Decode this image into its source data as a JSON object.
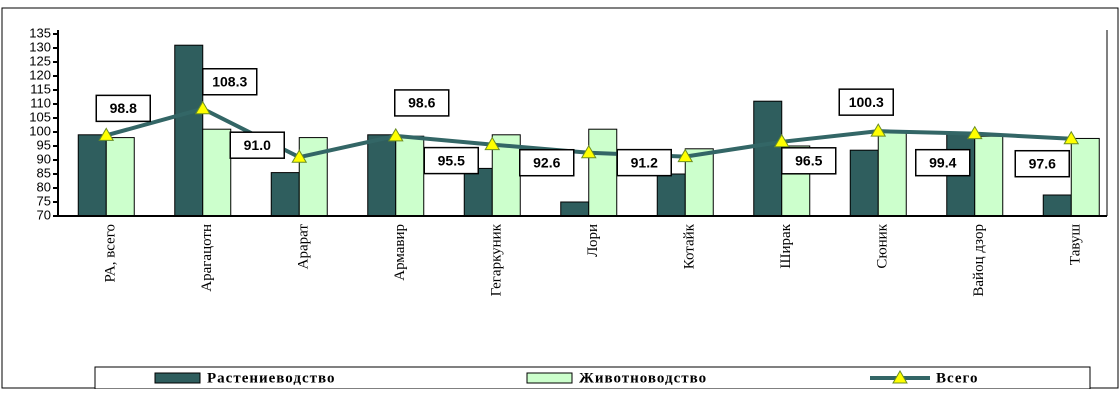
{
  "chart_data": {
    "type": "bar-line",
    "categories": [
      "РА, всего",
      "Арагацотн",
      "Арарат",
      "Армавир",
      "Гегаркуник",
      "Лори",
      "Котайк",
      "Ширак",
      "Сюник",
      "Вайоц дзор",
      "Тавуш"
    ],
    "series": [
      {
        "name": "Растениеводство",
        "type": "bar",
        "color": "#2f5e5e",
        "values": [
          99,
          131,
          85.5,
          99,
          87,
          75,
          85,
          111,
          93.5,
          99.5,
          77.5
        ]
      },
      {
        "name": "Животноводство",
        "type": "bar",
        "color": "#ccffcc",
        "values": [
          98,
          101,
          98,
          98.5,
          99,
          101,
          94,
          95,
          100,
          98.5,
          97.7
        ]
      },
      {
        "name": "Всего",
        "type": "line",
        "color": "#336666",
        "marker_color": "#ffff00",
        "values": [
          98.8,
          108.3,
          91.0,
          98.6,
          95.5,
          92.6,
          91.2,
          96.5,
          100.3,
          99.4,
          97.6
        ],
        "value_labels": [
          "98.8",
          "108.3",
          "91.0",
          "98.6",
          "95.5",
          "92.6",
          "91.2",
          "96.5",
          "100.3",
          "99.4",
          "97.6"
        ]
      }
    ],
    "ylim": [
      70,
      135
    ],
    "yticks": [
      70,
      75,
      80,
      85,
      90,
      95,
      100,
      105,
      110,
      115,
      120,
      125,
      130,
      135
    ],
    "legend": "bottom"
  }
}
